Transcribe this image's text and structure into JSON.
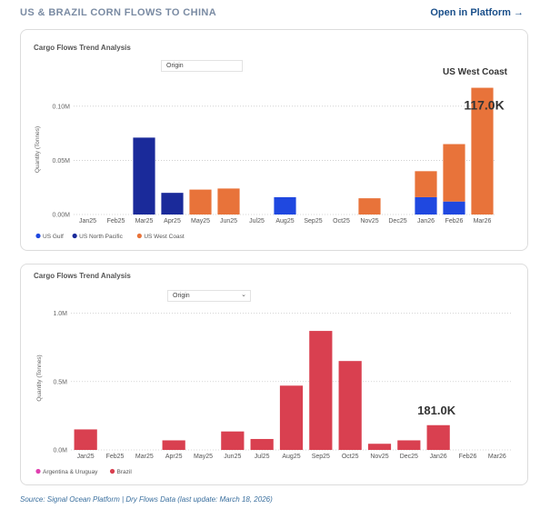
{
  "header": {
    "title": "US & BRAZIL CORN FLOWS TO CHINA",
    "link_label": "Open in Platform →"
  },
  "chart_data": [
    {
      "type": "bar",
      "stacked": true,
      "title": "Cargo Flows Trend Analysis",
      "filter_label": "Origin",
      "ylabel": "Quantity (Tonnes)",
      "xlabel": "",
      "ylim": [
        0,
        0.12
      ],
      "y_ticks": [
        "0.00M",
        "0.05M",
        "0.10M"
      ],
      "y_tick_values": [
        0,
        0.05,
        0.1
      ],
      "grid": true,
      "legend_position": "bottom-left",
      "categories": [
        "Jan25",
        "Feb25",
        "Mar25",
        "Apr25",
        "May25",
        "Jun25",
        "Jul25",
        "Aug25",
        "Sep25",
        "Oct25",
        "Nov25",
        "Dec25",
        "Jan26",
        "Feb26",
        "Mar26"
      ],
      "series": [
        {
          "name": "US Gulf",
          "color": "#1f48e0",
          "values": [
            0,
            0,
            0,
            0,
            0,
            0,
            0,
            0.016,
            0,
            0,
            0,
            0,
            0.016,
            0.012,
            0
          ]
        },
        {
          "name": "US North Pacific",
          "color": "#1a2a9a",
          "values": [
            0,
            0,
            0.071,
            0.02,
            0,
            0,
            0,
            0,
            0,
            0,
            0,
            0,
            0,
            0,
            0
          ]
        },
        {
          "name": "US West Coast",
          "color": "#e8733a",
          "values": [
            0,
            0,
            0,
            0,
            0.023,
            0.024,
            0,
            0,
            0,
            0,
            0.015,
            0,
            0.024,
            0.053,
            0.117
          ]
        }
      ],
      "annotation": {
        "series_label": "US West Coast",
        "value_label": "117.0K",
        "category": "Mar26"
      }
    },
    {
      "type": "bar",
      "title": "Cargo Flows Trend Analysis",
      "filter_label": "Origin",
      "ylabel": "Quantity (Tonnes)",
      "xlabel": "",
      "ylim": [
        0,
        1.05
      ],
      "y_ticks": [
        "0.0M",
        "0.5M",
        "1.0M"
      ],
      "y_tick_values": [
        0,
        0.5,
        1.0
      ],
      "grid": true,
      "legend_position": "bottom-left",
      "categories": [
        "Jan25",
        "Feb25",
        "Mar25",
        "Apr25",
        "May25",
        "Jun25",
        "Jul25",
        "Aug25",
        "Sep25",
        "Oct25",
        "Nov25",
        "Dec25",
        "Jan26",
        "Feb26",
        "Mar26"
      ],
      "series": [
        {
          "name": "Argentina & Uruguay",
          "color": "#e040b0",
          "values": [
            0,
            0,
            0,
            0,
            0,
            0,
            0,
            0,
            0,
            0,
            0,
            0,
            0,
            0,
            0
          ]
        },
        {
          "name": "Brazil",
          "color": "#d94050",
          "values": [
            0.15,
            0,
            0,
            0.07,
            0,
            0.135,
            0.08,
            0.47,
            0.87,
            0.65,
            0.045,
            0.07,
            0.181,
            0,
            0
          ]
        }
      ],
      "annotation": {
        "value_label": "181.0K",
        "category": "Jan26"
      }
    }
  ],
  "footer": {
    "source": "Source: Signal Ocean Platform | Dry Flows Data (last update: March 18, 2026)"
  }
}
